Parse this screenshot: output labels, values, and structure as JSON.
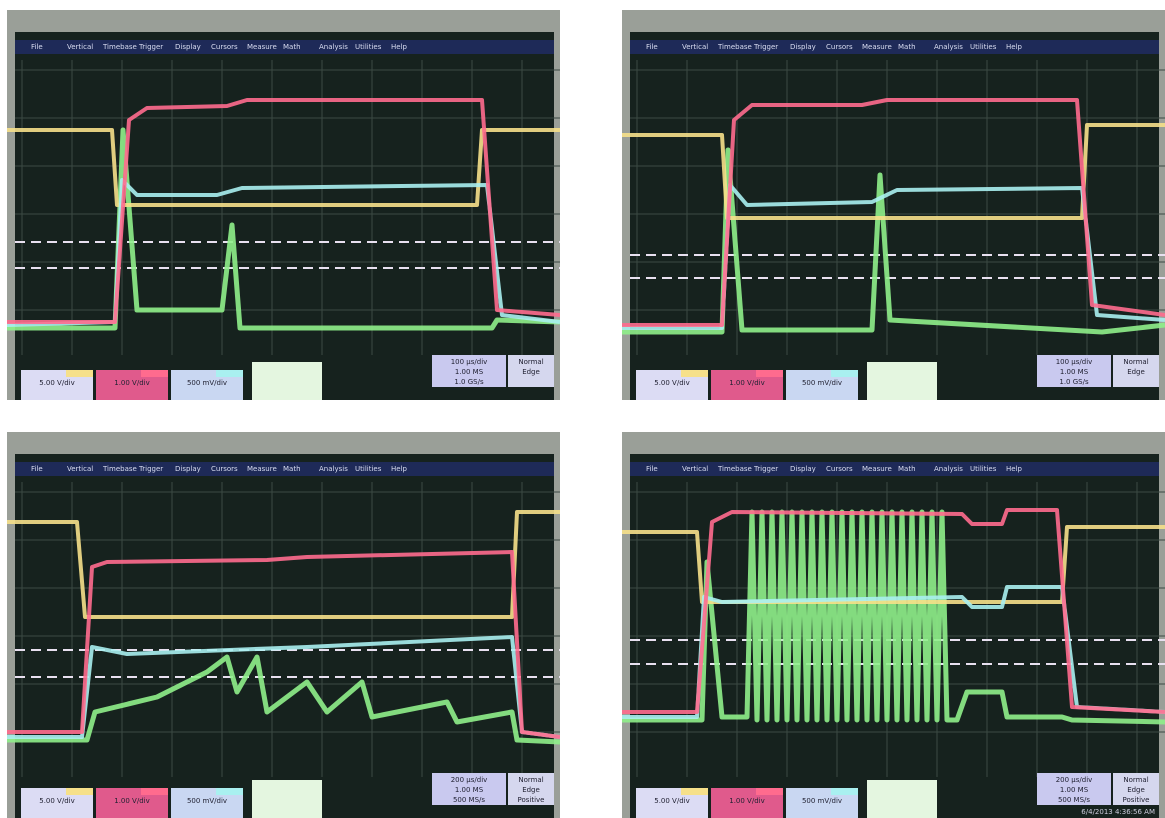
{
  "menu": [
    "File",
    "Vertical",
    "Timebase",
    "Trigger",
    "Display",
    "Cursors",
    "Measure",
    "Math",
    "Analysis",
    "Utilities",
    "Help"
  ],
  "panels": [
    {
      "channels": [
        "5.00 V/div",
        "1.00 V/div",
        "500 mV/div"
      ],
      "timebase": [
        "100 µs/div",
        "1.00 MS",
        "1.0 GS/s"
      ],
      "trigger": [
        "Normal",
        "Edge"
      ]
    },
    {
      "channels": [
        "5.00 V/div",
        "1.00 V/div",
        "500 mV/div"
      ],
      "timebase": [
        "100 µs/div",
        "1.00 MS",
        "1.0 GS/s"
      ],
      "trigger": [
        "Normal",
        "Edge"
      ]
    },
    {
      "channels": [
        "5.00 V/div",
        "1.00 V/div",
        "500 mV/div"
      ],
      "timebase": [
        "200 µs/div",
        "1.00 MS",
        "500 MS/s"
      ],
      "trigger": [
        "Normal",
        "Edge",
        "Positive"
      ]
    },
    {
      "channels": [
        "5.00 V/div",
        "1.00 V/div",
        "500 mV/div"
      ],
      "timebase": [
        "200 µs/div",
        "1.00 MS",
        "500 MS/s"
      ],
      "trigger": [
        "Normal",
        "Edge",
        "Positive"
      ],
      "timestamp": "6/4/2013 4:36:56 AM"
    }
  ]
}
